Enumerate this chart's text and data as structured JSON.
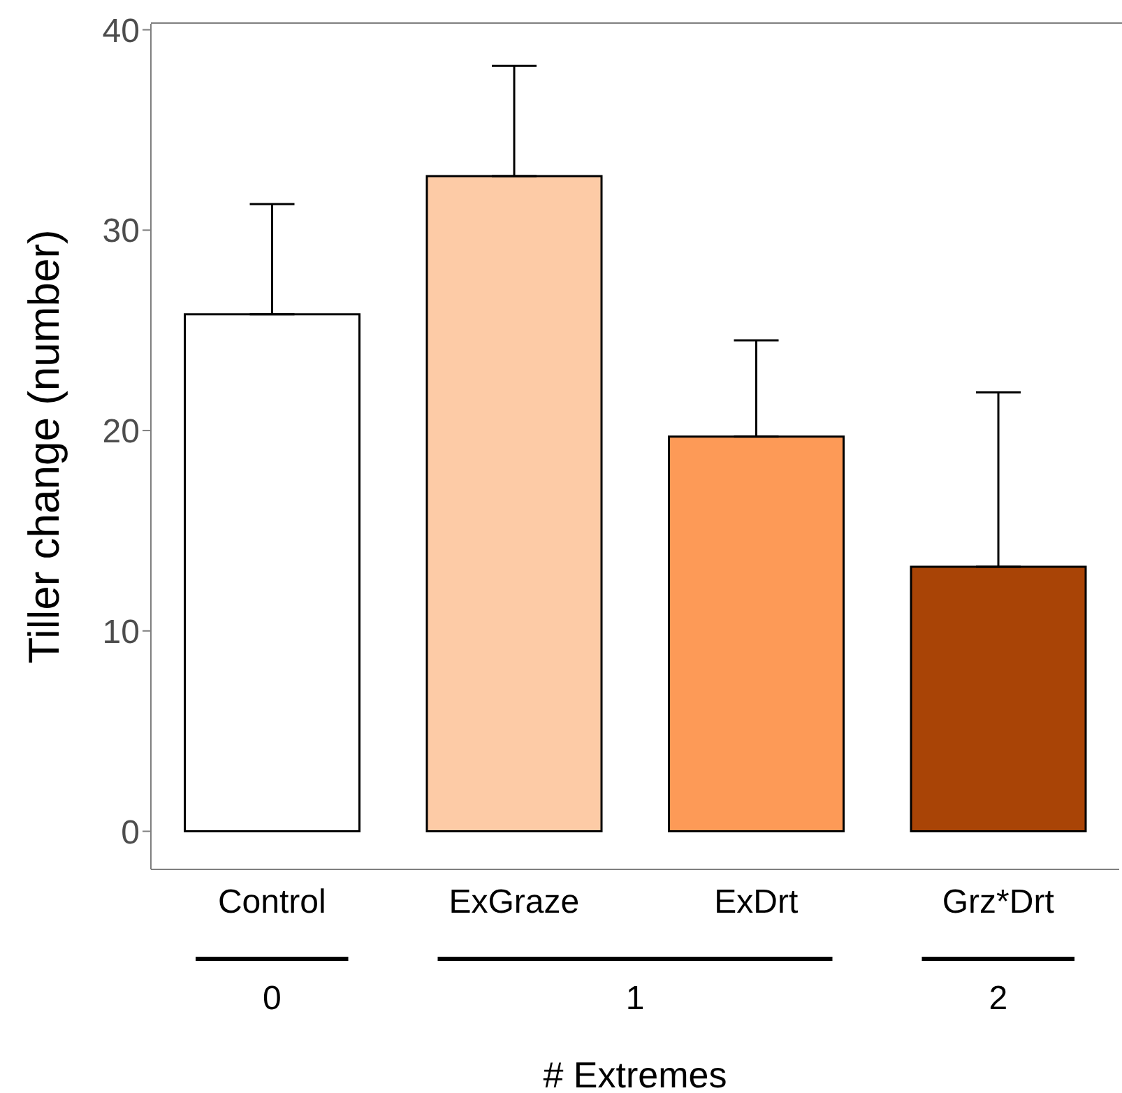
{
  "chart_data": {
    "type": "bar",
    "xlabel": "# Extremes",
    "ylabel": "Tiller change (number)",
    "categories": [
      "Control",
      "ExGraze",
      "ExDrt",
      "Grz*Drt"
    ],
    "values": [
      25.8,
      32.7,
      19.7,
      13.2
    ],
    "colors": [
      "#ffffff",
      "#fdcba6",
      "#fd9a57",
      "#a94406"
    ],
    "errors": [
      [
        25.8,
        31.3
      ],
      [
        32.7,
        38.2
      ],
      [
        19.7,
        24.5
      ],
      [
        13.2,
        21.9
      ]
    ],
    "ylim": [
      -1.9,
      40.3
    ],
    "yticks": [
      0,
      10,
      20,
      30,
      40
    ],
    "annotations": [
      "0",
      "1",
      "2"
    ]
  }
}
